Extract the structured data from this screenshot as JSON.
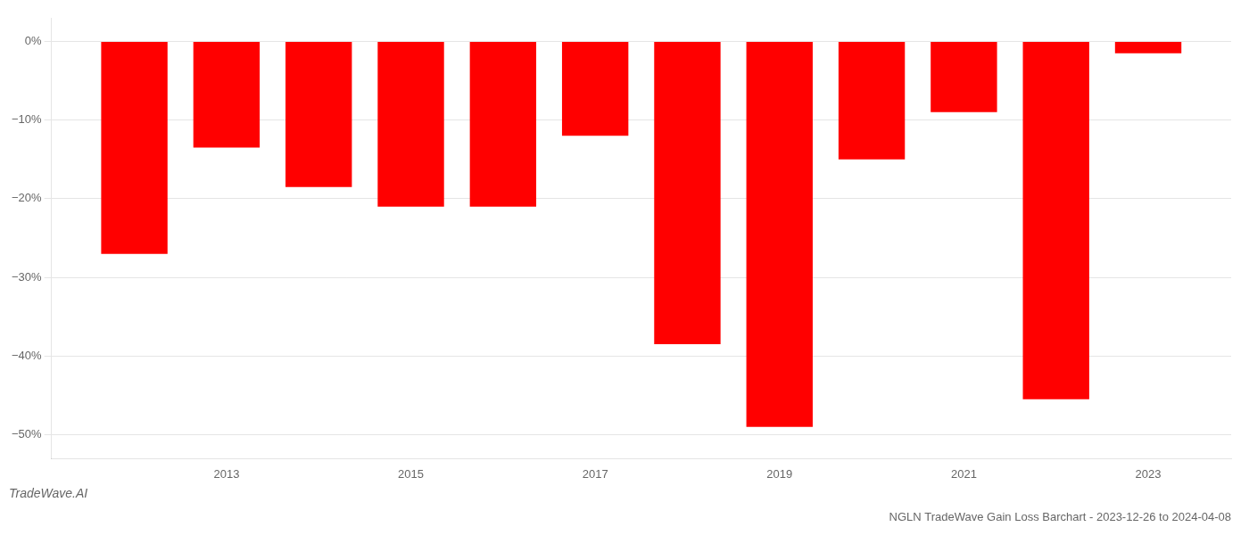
{
  "chart_data": {
    "type": "bar",
    "title": "NGLN TradeWave Gain Loss Barchart - 2023-12-26 to 2024-04-08",
    "annotation": "TradeWave.AI",
    "x": [
      2012,
      2013,
      2014,
      2015,
      2016,
      2017,
      2018,
      2019,
      2020,
      2021,
      2022,
      2023
    ],
    "values": [
      -27.0,
      -13.5,
      -18.5,
      -21.0,
      -21.0,
      -12.0,
      -38.5,
      -49.0,
      -15.0,
      -9.0,
      -45.5,
      -1.5
    ],
    "color": "#ff0000",
    "xlim": [
      2011.1,
      2023.9
    ],
    "xticks": [
      2013,
      2015,
      2017,
      2019,
      2021,
      2023
    ],
    "ylim": [
      -53,
      3
    ],
    "yticks": [
      {
        "value": 0,
        "label": "0%"
      },
      {
        "value": -10,
        "label": "−10%"
      },
      {
        "value": -20,
        "label": "−20%"
      },
      {
        "value": -30,
        "label": "−30%"
      },
      {
        "value": -40,
        "label": "−40%"
      },
      {
        "value": -50,
        "label": "−50%"
      }
    ],
    "grid": true
  }
}
